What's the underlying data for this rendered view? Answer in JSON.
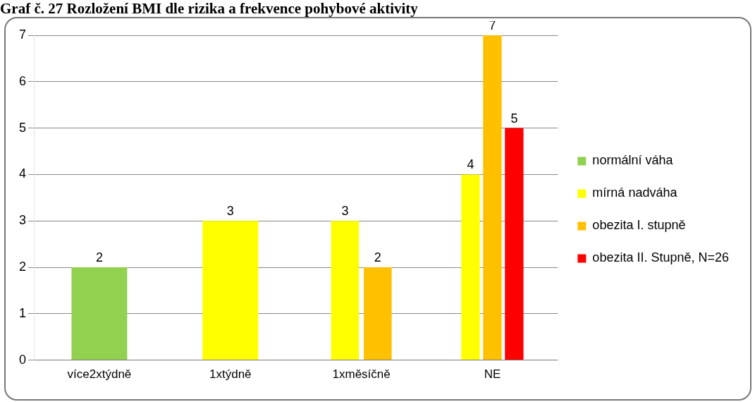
{
  "chart_data": {
    "type": "bar",
    "title": "Graf č. 27 Rozložení BMI dle rizika a frekvence pohybové aktivity",
    "categories": [
      "více2xtýdně",
      "1xtýdně",
      "1xměsíčně",
      "NE"
    ],
    "series": [
      {
        "name": "normální váha",
        "color": "#92d050",
        "values": [
          2,
          null,
          null,
          null
        ]
      },
      {
        "name": "mírná nadváha",
        "color": "#ffff00",
        "values": [
          null,
          3,
          3,
          4
        ]
      },
      {
        "name": "obezita I. stupně",
        "color": "#ffc000",
        "values": [
          null,
          null,
          2,
          7
        ]
      },
      {
        "name": "obezita II. Stupně, N=26",
        "color": "#ff0000",
        "values": [
          null,
          null,
          null,
          5
        ]
      }
    ],
    "ylim": [
      0,
      7
    ],
    "yticks": [
      0,
      1,
      2,
      3,
      4,
      5,
      6,
      7
    ],
    "grid": "y",
    "legend": "right",
    "data_labels": true
  }
}
